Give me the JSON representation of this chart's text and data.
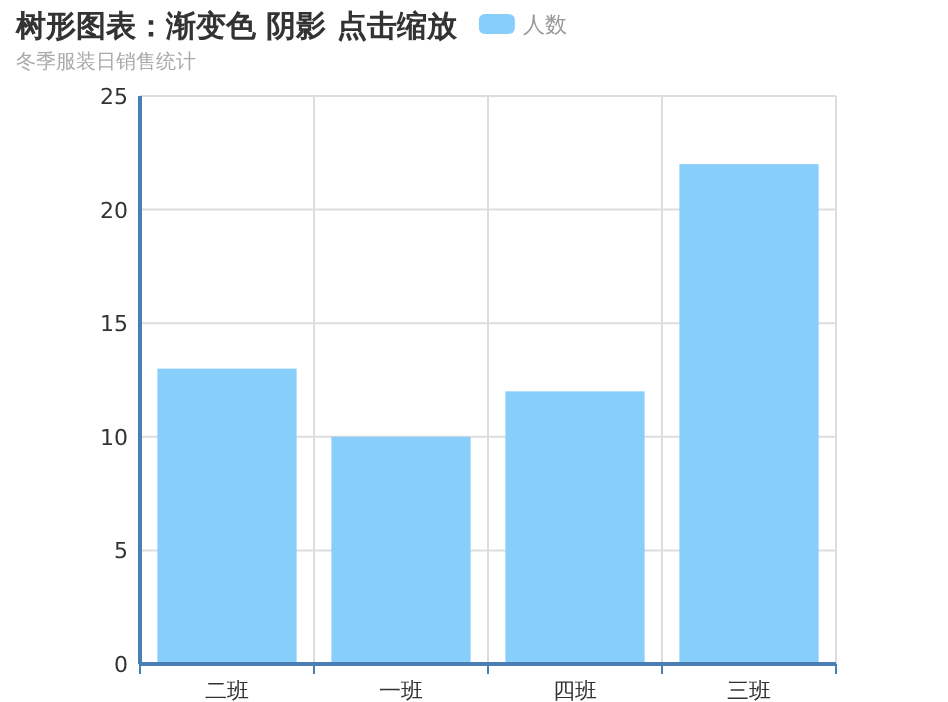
{
  "chart_data": {
    "type": "bar",
    "title": "树形图表：渐变色 阴影 点击缩放",
    "subtitle": "冬季服装日销售统计",
    "categories": [
      "二班",
      "一班",
      "四班",
      "三班"
    ],
    "series": [
      {
        "name": "人数",
        "color": "#87cefa",
        "values": [
          13,
          10,
          12,
          22
        ]
      }
    ],
    "ylim": [
      0,
      25
    ],
    "yticks": [
      0,
      5,
      10,
      15,
      20,
      25
    ],
    "grid": true,
    "legend": "top"
  }
}
